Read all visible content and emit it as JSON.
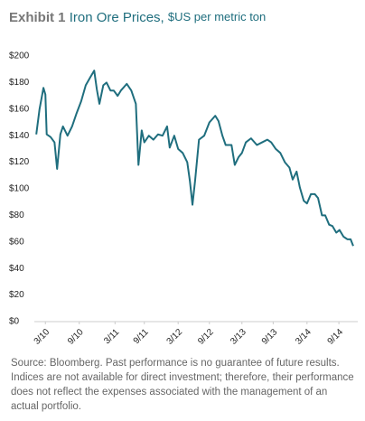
{
  "chart_data": {
    "type": "line",
    "title_label": "Exhibit 1",
    "title": "Iron Ore Prices,",
    "subtitle": "$US per metric ton",
    "source": "Source: Bloomberg. Past performance is no guarantee of future results. Indices are not available for direct investment; therefore, their performance does not reflect the expenses associated with the management of an actual portfolio.",
    "x": [
      2010.03,
      2010.08,
      2010.14,
      2010.17,
      2010.19,
      2010.25,
      2010.31,
      2010.35,
      2010.4,
      2010.44,
      2010.51,
      2010.58,
      2010.65,
      2010.72,
      2010.79,
      2010.86,
      2010.92,
      2010.96,
      2011.0,
      2011.06,
      2011.11,
      2011.17,
      2011.22,
      2011.28,
      2011.33,
      2011.42,
      2011.49,
      2011.56,
      2011.6,
      2011.65,
      2011.69,
      2011.76,
      2011.83,
      2011.9,
      2011.97,
      2012.04,
      2012.08,
      2012.15,
      2012.21,
      2012.28,
      2012.35,
      2012.39,
      2012.43,
      2012.47,
      2012.53,
      2012.61,
      2012.69,
      2012.78,
      2012.83,
      2012.89,
      2012.94,
      2013.03,
      2013.08,
      2013.14,
      2013.19,
      2013.25,
      2013.33,
      2013.42,
      2013.5,
      2013.58,
      2013.64,
      2013.71,
      2013.78,
      2013.85,
      2013.92,
      2013.97,
      2014.03,
      2014.08,
      2014.14,
      2014.19,
      2014.25,
      2014.31,
      2014.36,
      2014.42,
      2014.47,
      2014.53,
      2014.58,
      2014.64,
      2014.69,
      2014.75,
      2014.81,
      2014.86,
      2014.9
    ],
    "series": [
      {
        "color": "#1f6e7e",
        "values": [
          141,
          160,
          176,
          171,
          141,
          139,
          135,
          115,
          141,
          147,
          140,
          147,
          157,
          166,
          178,
          184,
          189,
          175,
          164,
          178,
          180,
          174,
          174,
          170,
          174,
          179,
          174,
          164,
          118,
          144,
          135,
          140,
          137,
          141,
          140,
          147,
          131,
          140,
          130,
          127,
          120,
          106,
          88,
          106,
          137,
          140,
          150,
          155,
          151,
          140,
          133,
          133,
          118,
          124,
          127,
          135,
          138,
          133,
          135,
          137,
          135,
          130,
          127,
          120,
          116,
          107,
          113,
          101,
          91,
          89,
          96,
          96,
          93,
          80,
          80,
          73,
          72,
          67,
          69,
          64,
          62,
          62,
          57
        ]
      }
    ],
    "xlim": [
      2010,
      2014.97
    ],
    "xticks": [
      {
        "value": 2010.17,
        "label": "3/10"
      },
      {
        "value": 2010.69,
        "label": "9/10"
      },
      {
        "value": 2011.24,
        "label": "3/11"
      },
      {
        "value": 2011.69,
        "label": "9/11"
      },
      {
        "value": 2012.21,
        "label": "3/12"
      },
      {
        "value": 2012.69,
        "label": "9/12"
      },
      {
        "value": 2013.19,
        "label": "3/13"
      },
      {
        "value": 2013.67,
        "label": "9/13"
      },
      {
        "value": 2014.19,
        "label": "3/14"
      },
      {
        "value": 2014.68,
        "label": "9/14"
      }
    ],
    "ylim": [
      0,
      200
    ],
    "yticks": [
      {
        "value": 0,
        "label": "$0"
      },
      {
        "value": 20,
        "label": "$20"
      },
      {
        "value": 40,
        "label": "$40"
      },
      {
        "value": 60,
        "label": "$60"
      },
      {
        "value": 80,
        "label": "$80"
      },
      {
        "value": 100,
        "label": "$100"
      },
      {
        "value": 120,
        "label": "$120"
      },
      {
        "value": 140,
        "label": "$140"
      },
      {
        "value": 160,
        "label": "$160"
      },
      {
        "value": 180,
        "label": "$180"
      },
      {
        "value": 200,
        "label": "$200"
      }
    ]
  }
}
